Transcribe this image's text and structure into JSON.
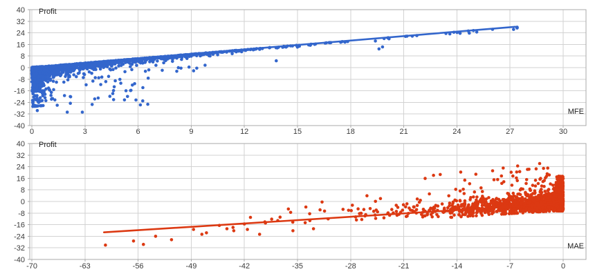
{
  "panel": {
    "background": "#ffffff"
  },
  "chart_data": [
    {
      "type": "scatter",
      "title": "",
      "ylabel": "Profit",
      "xlabel": "MFE",
      "legend": "none",
      "grid": true,
      "series_color": "#3366cc",
      "grid_color": "#d2d2d2",
      "axis_color": "#a9a9a9",
      "tick_label_color": "#3b3b3b",
      "label_color": "#1f1f1f",
      "x_ticks": [
        0,
        3,
        6,
        9,
        12,
        15,
        18,
        21,
        24,
        27,
        30
      ],
      "y_ticks": [
        40,
        32,
        24,
        16,
        8,
        0,
        -8,
        -16,
        -24,
        -32,
        -40
      ],
      "xlim": [
        -0.12,
        31.3
      ],
      "ylim": [
        -40,
        40
      ],
      "point_radius": 2.3,
      "trend": {
        "m": 1.023,
        "b": 0.3
      },
      "trendline": [
        [
          0,
          0.3
        ],
        [
          27.3,
          28.2
        ]
      ],
      "seed": 1337,
      "clusters": [
        {
          "type": "blue-spike",
          "n": 650,
          "sigma": 0.38,
          "xmax": 1.1,
          "p1": 0.55,
          "mean1": 3.0,
          "mean2": 9.0,
          "dmax": 27
        },
        {
          "type": "blue-band",
          "n": 1150,
          "xmean": 4.6,
          "xmax": 27.4,
          "base": 0.55,
          "boost": 4.2,
          "scale": 2.6
        },
        {
          "type": "box",
          "n": 40,
          "x": [
            0.3,
            6.6
          ],
          "y": [
            -26,
            -6
          ]
        },
        {
          "type": "box",
          "n": 14,
          "x": [
            5,
            10
          ],
          "y": [
            -3,
            2.5
          ]
        }
      ],
      "extra_points": [
        [
          0.31,
          -29.6
        ],
        [
          2.0,
          -30.7
        ],
        [
          2.85,
          -30.7
        ],
        [
          0.05,
          -24.2
        ],
        [
          1.3,
          -22.3
        ],
        [
          3.55,
          -21.6
        ],
        [
          4.57,
          -17.9
        ],
        [
          13.8,
          4.7
        ],
        [
          19.6,
          12.9
        ],
        [
          19.8,
          14.3
        ],
        [
          23.6,
          23.3
        ],
        [
          24.7,
          23.8
        ],
        [
          27.2,
          26.4
        ]
      ]
    },
    {
      "type": "scatter",
      "title": "",
      "ylabel": "Profit",
      "xlabel": "MAE",
      "legend": "none",
      "grid": true,
      "series_color": "#dc3912",
      "grid_color": "#d2d2d2",
      "axis_color": "#a9a9a9",
      "tick_label_color": "#3b3b3b",
      "label_color": "#1f1f1f",
      "x_ticks": [
        -70,
        -63,
        -56,
        -49,
        -42,
        -35,
        -28,
        -21,
        -14,
        -7,
        0
      ],
      "y_ticks": [
        40,
        32,
        24,
        16,
        8,
        0,
        -8,
        -16,
        -24,
        -32,
        -40
      ],
      "xlim": [
        -70.3,
        3.0
      ],
      "ylim": [
        -40,
        40
      ],
      "point_radius": 2.3,
      "trend": {
        "m": 0.33,
        "b": -1.3
      },
      "trendline": [
        [
          -60.5,
          -21.3
        ],
        [
          -0.6,
          -1.5
        ]
      ],
      "seed": 7331,
      "clusters": [
        {
          "type": "red-spike",
          "n": 520,
          "sigma": 0.55,
          "xmax": 1.6,
          "p_uniform": 0.3,
          "u": [
            -6,
            17.5
          ],
          "mean": 2.5,
          "ysigma": 5.2,
          "clip": [
            -6.5,
            14
          ]
        },
        {
          "type": "red-band",
          "n": 1050,
          "xmean": 6.0,
          "xmax": 62,
          "esigma": 2.5,
          "eclip": [
            -4.8,
            6
          ]
        },
        {
          "type": "red-upper",
          "n": 210,
          "xmean": 7.5,
          "xmax": 42,
          "ebase": 4,
          "emean": 4.8,
          "emax": 21
        }
      ],
      "extra_points": [
        [
          -60.3,
          -30.1
        ],
        [
          -56.6,
          -27.3
        ],
        [
          -55.3,
          -29.6
        ],
        [
          -53.7,
          -24
        ],
        [
          -51.6,
          -26.4
        ],
        [
          -48.7,
          -19.3
        ],
        [
          -47.6,
          -22.6
        ],
        [
          -47,
          -21.6
        ],
        [
          -45.3,
          -16.5
        ],
        [
          -44.3,
          -18.8
        ],
        [
          -43.5,
          -17.9
        ],
        [
          -43.4,
          -20.2
        ],
        [
          -42,
          -15.5
        ],
        [
          -41.6,
          -19.3
        ],
        [
          -40,
          -22.6
        ],
        [
          -39.3,
          -14.1
        ],
        [
          -38.4,
          -12.2
        ],
        [
          -37.6,
          -13.2
        ],
        [
          -37.3,
          -10.8
        ],
        [
          -36.2,
          -5.2
        ],
        [
          -35.9,
          -7.5
        ],
        [
          -35.6,
          -20.2
        ],
        [
          -33.9,
          -3.8
        ],
        [
          -33.4,
          -8.5
        ],
        [
          -32.9,
          -18.8
        ],
        [
          -16.2,
          18.6
        ],
        [
          -13.5,
          20.3
        ],
        [
          -11.5,
          18.8
        ],
        [
          -9.3,
          21.2
        ],
        [
          -7.9,
          23.1
        ],
        [
          -6.0,
          24.5
        ],
        [
          -3.1,
          26.2
        ],
        [
          -2.2,
          17.4
        ]
      ]
    }
  ]
}
